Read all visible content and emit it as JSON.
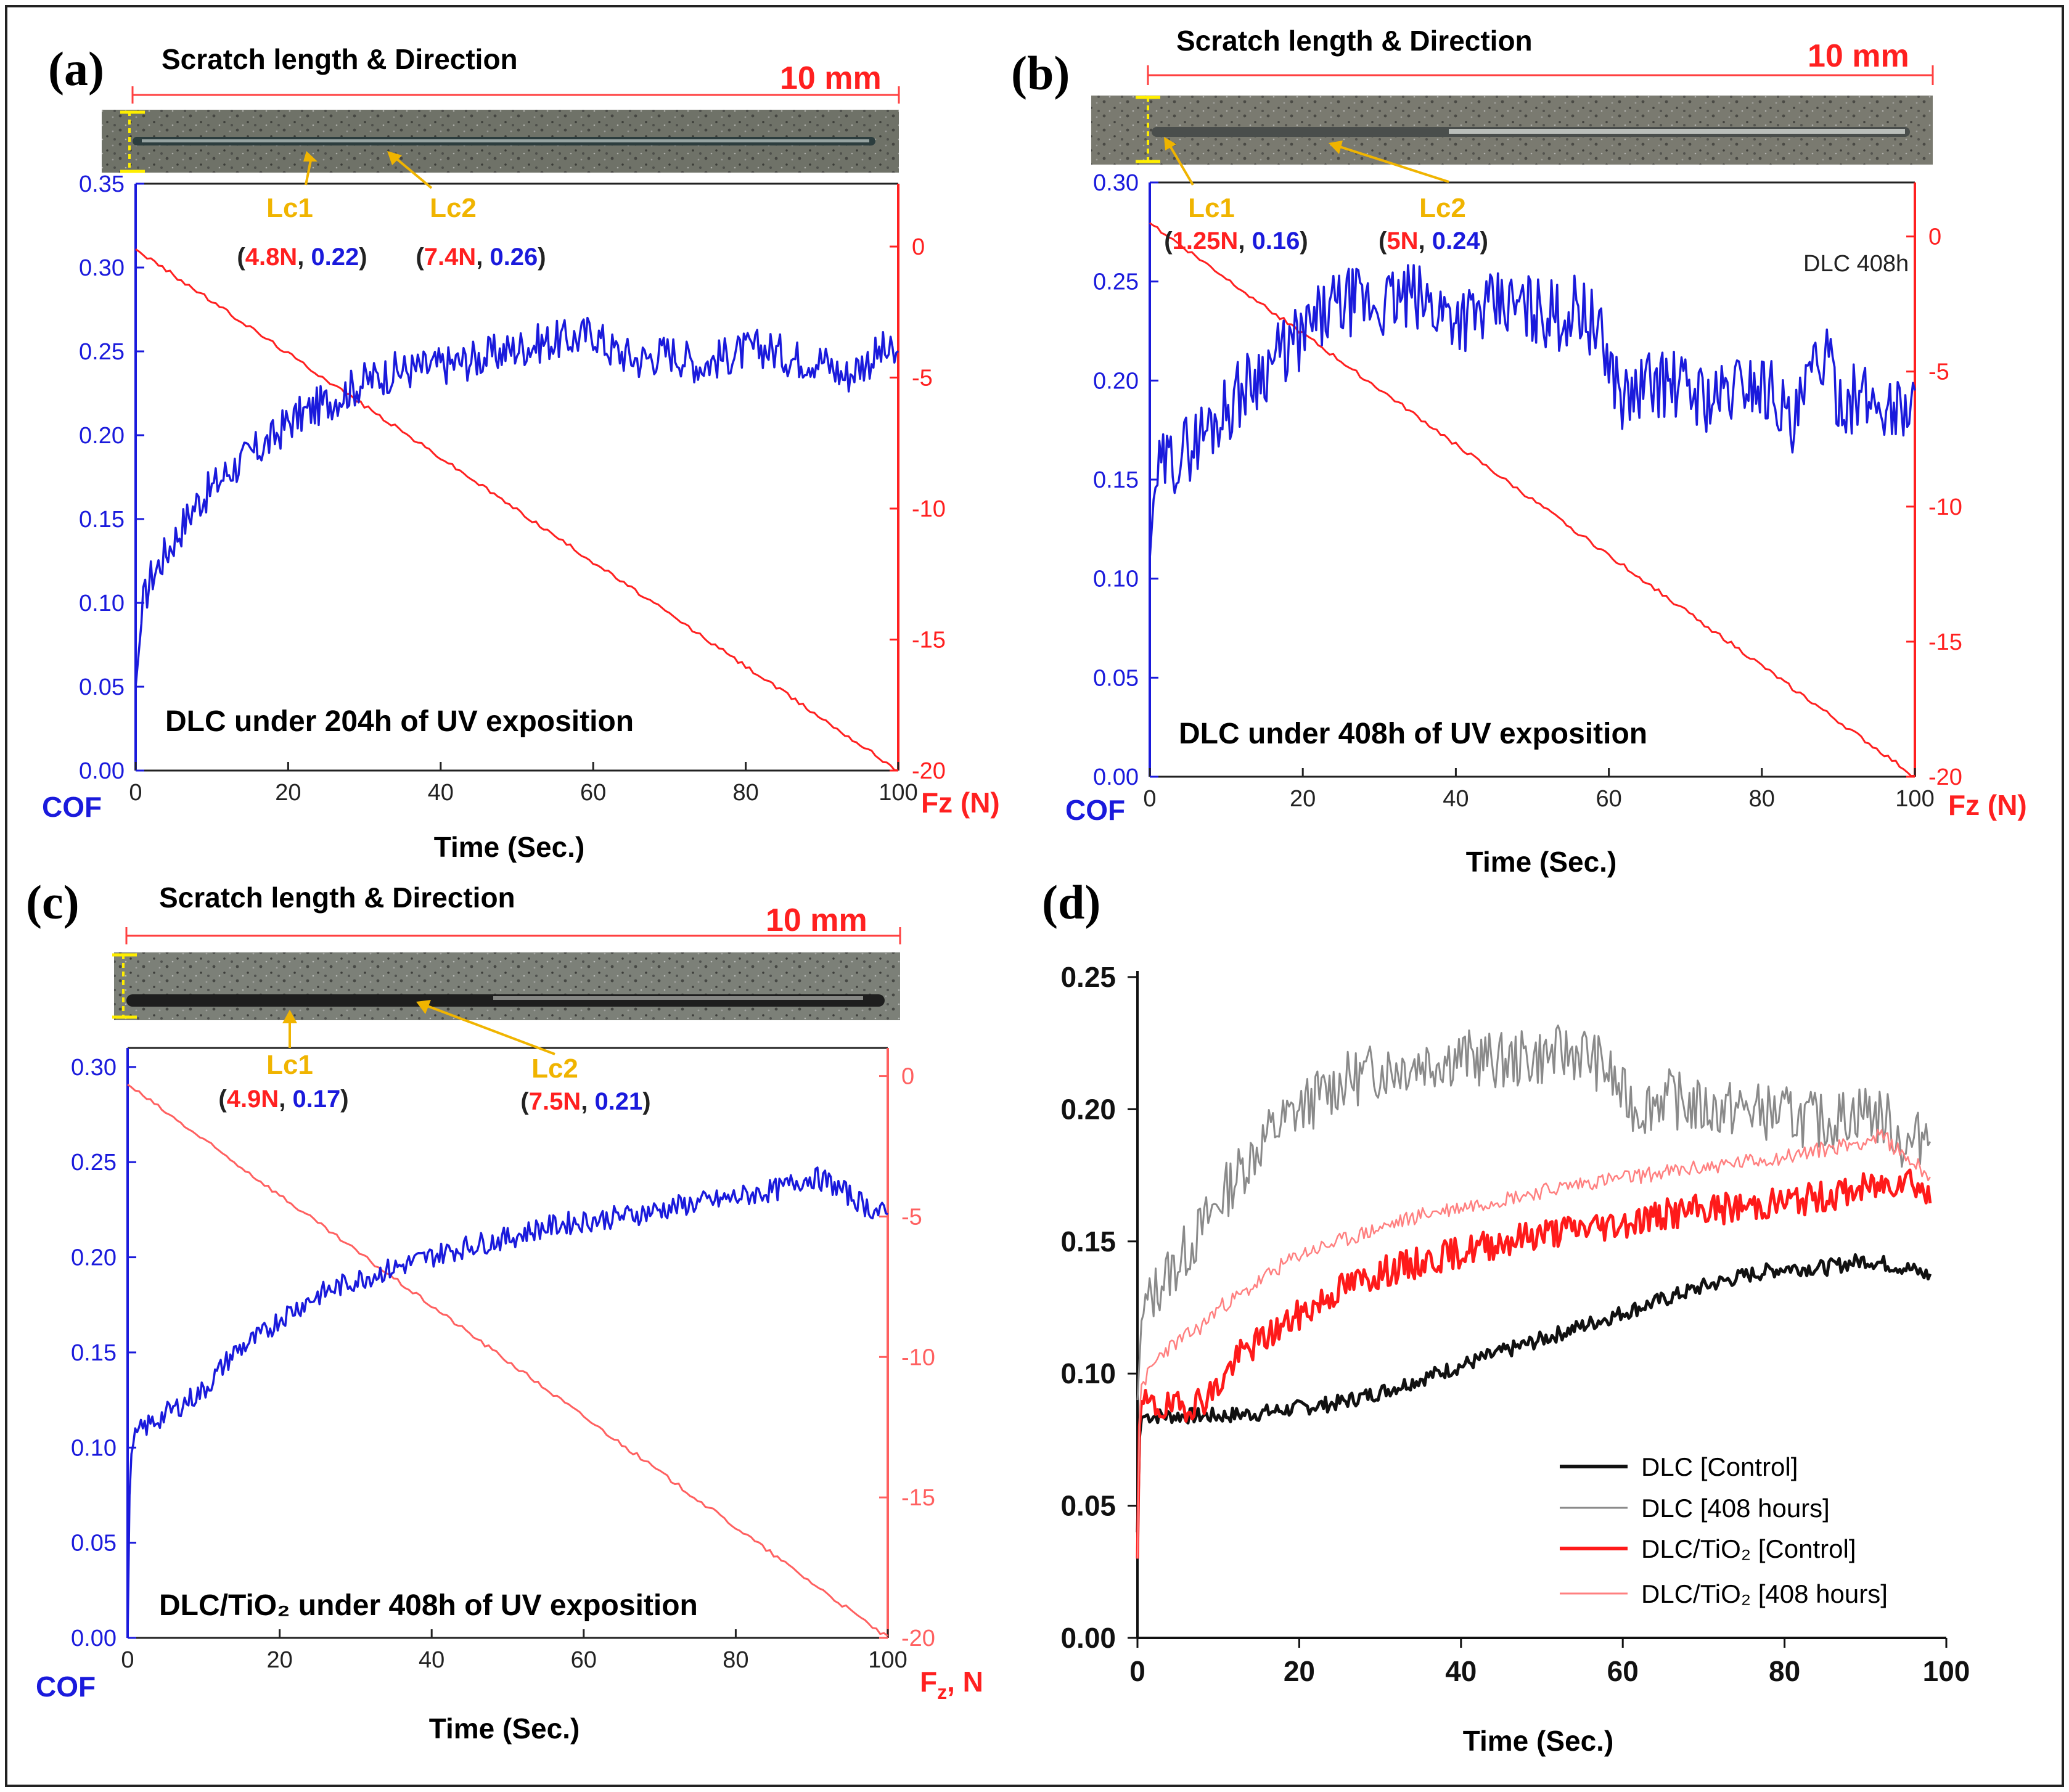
{
  "colors": {
    "cof": "#1a1adc",
    "force": "#ff2020",
    "lc": "#f0b400",
    "black": "#1a1a1a",
    "grey": "#8a8a8a",
    "pink": "#ff8080"
  },
  "chart_data": [
    {
      "id": "a",
      "type": "line",
      "panel_label": "(a)",
      "scratch_title": "Scratch length & Direction",
      "scale_label": "10 mm",
      "xlabel": "Time (Sec.)",
      "ylabel_left": "COF",
      "ylabel_right": "Fz (N)",
      "xlim": [
        0,
        100
      ],
      "ylim_left": [
        0,
        0.35
      ],
      "ylim_right": [
        -20,
        2.4
      ],
      "x_ticks": [
        "0",
        "20",
        "40",
        "60",
        "80",
        "100"
      ],
      "left_ticks": [
        "0.00",
        "0.05",
        "0.10",
        "0.15",
        "0.20",
        "0.25",
        "0.30",
        "0.35"
      ],
      "right_ticks": [
        "0",
        "-5",
        "-10",
        "-15",
        "-20"
      ],
      "caption": "DLC under 204h of UV exposition",
      "note": "",
      "lc1": {
        "label": "Lc1",
        "force": "4.8N",
        "cof": "0.22",
        "time": 23
      },
      "lc2": {
        "label": "Lc2",
        "force": "7.4N",
        "cof": "0.26",
        "time": 34
      },
      "cof_series": {
        "x": [
          0,
          1,
          2,
          4,
          6,
          8,
          10,
          12,
          15,
          18,
          20,
          23,
          26,
          30,
          34,
          38,
          42,
          46,
          50,
          54,
          58,
          60,
          62,
          66,
          70,
          74,
          78,
          82,
          84,
          86,
          90,
          93,
          95,
          98,
          100
        ],
        "y": [
          0.05,
          0.1,
          0.115,
          0.13,
          0.145,
          0.16,
          0.168,
          0.178,
          0.188,
          0.198,
          0.208,
          0.215,
          0.222,
          0.232,
          0.238,
          0.24,
          0.243,
          0.247,
          0.252,
          0.256,
          0.258,
          0.262,
          0.252,
          0.245,
          0.25,
          0.242,
          0.248,
          0.252,
          0.25,
          0.246,
          0.245,
          0.235,
          0.242,
          0.25,
          0.245
        ]
      },
      "force_series": {
        "x": [
          0,
          100
        ],
        "y": [
          -0.1,
          -20
        ]
      }
    },
    {
      "id": "b",
      "type": "line",
      "panel_label": "(b)",
      "scratch_title": "Scratch length & Direction",
      "scale_label": "10 mm",
      "xlabel": "Time (Sec.)",
      "ylabel_left": "COF",
      "ylabel_right": "Fz (N)",
      "xlim": [
        0,
        100
      ],
      "ylim_left": [
        0,
        0.3
      ],
      "ylim_right": [
        -20,
        2.0
      ],
      "x_ticks": [
        "0",
        "20",
        "40",
        "60",
        "80",
        "100"
      ],
      "left_ticks": [
        "0.00",
        "0.05",
        "0.10",
        "0.15",
        "0.20",
        "0.25",
        "0.30"
      ],
      "right_ticks": [
        "0",
        "-5",
        "-10",
        "-15",
        "-20"
      ],
      "caption": "DLC under 408h of UV exposition",
      "note": "DLC 408h",
      "lc1": {
        "label": "Lc1",
        "force": "1.25N",
        "cof": "0.16",
        "time": 2
      },
      "lc2": {
        "label": "Lc2",
        "force": "5N",
        "cof": "0.24",
        "time": 24
      },
      "cof_series": {
        "x": [
          0,
          0.5,
          1,
          2,
          4,
          6,
          8,
          10,
          12,
          14,
          16,
          18,
          20,
          22,
          24,
          26,
          30,
          34,
          38,
          42,
          46,
          50,
          54,
          56,
          58,
          60,
          62,
          64,
          66,
          70,
          74,
          78,
          82,
          84,
          86,
          88,
          90,
          94,
          98,
          100
        ],
        "y": [
          0.11,
          0.14,
          0.152,
          0.157,
          0.163,
          0.17,
          0.178,
          0.186,
          0.195,
          0.203,
          0.21,
          0.216,
          0.222,
          0.23,
          0.236,
          0.24,
          0.238,
          0.242,
          0.236,
          0.232,
          0.238,
          0.236,
          0.232,
          0.238,
          0.228,
          0.21,
          0.19,
          0.195,
          0.2,
          0.196,
          0.19,
          0.2,
          0.194,
          0.172,
          0.198,
          0.214,
          0.192,
          0.19,
          0.185,
          0.19
        ]
      },
      "force_series": {
        "x": [
          0,
          100
        ],
        "y": [
          0.5,
          -20
        ]
      }
    },
    {
      "id": "c",
      "type": "line",
      "panel_label": "(c)",
      "scratch_title": "Scratch length & Direction",
      "scale_label": "10 mm",
      "xlabel": "Time (Sec.)",
      "ylabel_left": "COF",
      "ylabel_right": "Fz, N",
      "xlim": [
        0,
        100
      ],
      "ylim_left": [
        0,
        0.31
      ],
      "ylim_right": [
        -20,
        1.0
      ],
      "x_ticks": [
        "0",
        "20",
        "40",
        "60",
        "80",
        "100"
      ],
      "left_ticks": [
        "0.00",
        "0.05",
        "0.10",
        "0.15",
        "0.20",
        "0.25",
        "0.30"
      ],
      "right_ticks": [
        "0",
        "-5",
        "-10",
        "-15",
        "-20"
      ],
      "caption": "DLC/TiO₂ under 408h of UV exposition",
      "note": "",
      "lc1": {
        "label": "Lc1",
        "force": "4.9N",
        "cof": "0.17",
        "time": 21
      },
      "lc2": {
        "label": "Lc2",
        "force": "7.5N",
        "cof": "0.21",
        "time": 38
      },
      "cof_series": {
        "x": [
          0,
          0.3,
          0.6,
          1,
          2,
          4,
          6,
          8,
          10,
          12,
          14,
          16,
          18,
          20,
          22,
          25,
          28,
          30,
          34,
          38,
          42,
          46,
          50,
          54,
          58,
          62,
          66,
          70,
          74,
          78,
          82,
          86,
          88,
          90,
          92,
          94,
          96,
          98,
          100
        ],
        "y": [
          0.0,
          0.09,
          0.1,
          0.105,
          0.11,
          0.115,
          0.12,
          0.125,
          0.13,
          0.14,
          0.15,
          0.155,
          0.16,
          0.168,
          0.173,
          0.18,
          0.185,
          0.188,
          0.193,
          0.198,
          0.203,
          0.207,
          0.21,
          0.215,
          0.218,
          0.22,
          0.222,
          0.225,
          0.228,
          0.23,
          0.233,
          0.236,
          0.24,
          0.242,
          0.24,
          0.235,
          0.23,
          0.225,
          0.222
        ]
      },
      "force_series": {
        "x": [
          0,
          100
        ],
        "y": [
          -0.3,
          -20
        ]
      }
    },
    {
      "id": "d",
      "type": "line",
      "panel_label": "(d)",
      "xlabel": "Time (Sec.)",
      "xlim": [
        0,
        100
      ],
      "ylim": [
        0,
        0.25
      ],
      "x_ticks": [
        "0",
        "20",
        "40",
        "60",
        "80",
        "100"
      ],
      "y_ticks": [
        "0.00",
        "0.05",
        "0.10",
        "0.15",
        "0.20",
        "0.25"
      ],
      "series": [
        {
          "name": "DLC [Control]",
          "x": [
            0,
            0.3,
            1,
            5,
            10,
            15,
            20,
            25,
            30,
            35,
            40,
            45,
            50,
            55,
            60,
            65,
            70,
            75,
            80,
            85,
            90,
            95,
            98
          ],
          "y": [
            0.04,
            0.083,
            0.084,
            0.084,
            0.084,
            0.085,
            0.087,
            0.089,
            0.093,
            0.098,
            0.103,
            0.108,
            0.113,
            0.118,
            0.123,
            0.128,
            0.133,
            0.137,
            0.14,
            0.14,
            0.143,
            0.14,
            0.137
          ]
        },
        {
          "name": "DLC [408 hours]",
          "x": [
            0,
            0.5,
            1,
            3,
            5,
            8,
            10,
            13,
            16,
            20,
            25,
            30,
            35,
            40,
            45,
            50,
            55,
            58,
            60,
            62,
            65,
            70,
            75,
            80,
            85,
            90,
            93,
            95,
            97,
            98
          ],
          "y": [
            0.09,
            0.12,
            0.125,
            0.135,
            0.142,
            0.155,
            0.165,
            0.178,
            0.19,
            0.2,
            0.21,
            0.215,
            0.218,
            0.22,
            0.218,
            0.22,
            0.222,
            0.215,
            0.205,
            0.2,
            0.205,
            0.2,
            0.2,
            0.198,
            0.195,
            0.2,
            0.195,
            0.185,
            0.19,
            0.198
          ]
        },
        {
          "name": "DLC/TiO₂ [Control]",
          "x": [
            0,
            0.3,
            1,
            3,
            5,
            8,
            10,
            12,
            14,
            16,
            18,
            20,
            22,
            25,
            30,
            35,
            40,
            45,
            50,
            55,
            60,
            65,
            70,
            75,
            80,
            85,
            90,
            93,
            95,
            97,
            98
          ],
          "y": [
            0.03,
            0.09,
            0.088,
            0.087,
            0.087,
            0.09,
            0.095,
            0.105,
            0.11,
            0.114,
            0.118,
            0.122,
            0.126,
            0.132,
            0.138,
            0.142,
            0.146,
            0.15,
            0.153,
            0.155,
            0.157,
            0.16,
            0.162,
            0.163,
            0.165,
            0.167,
            0.17,
            0.172,
            0.175,
            0.17,
            0.165
          ]
        },
        {
          "name": "DLC/TiO₂ [408 hours]",
          "x": [
            0,
            0.3,
            1,
            3,
            5,
            8,
            10,
            13,
            16,
            20,
            25,
            30,
            35,
            40,
            45,
            50,
            55,
            60,
            65,
            70,
            75,
            80,
            85,
            90,
            92,
            95,
            98
          ],
          "y": [
            0.03,
            0.095,
            0.098,
            0.108,
            0.112,
            0.118,
            0.125,
            0.13,
            0.137,
            0.145,
            0.15,
            0.155,
            0.16,
            0.163,
            0.166,
            0.169,
            0.172,
            0.174,
            0.176,
            0.178,
            0.18,
            0.182,
            0.185,
            0.188,
            0.19,
            0.182,
            0.175
          ]
        }
      ],
      "legend": [
        "DLC [Control]",
        "DLC [408 hours]",
        "DLC/TiO₂ [Control]",
        "DLC/TiO₂ [408 hours]"
      ]
    }
  ]
}
